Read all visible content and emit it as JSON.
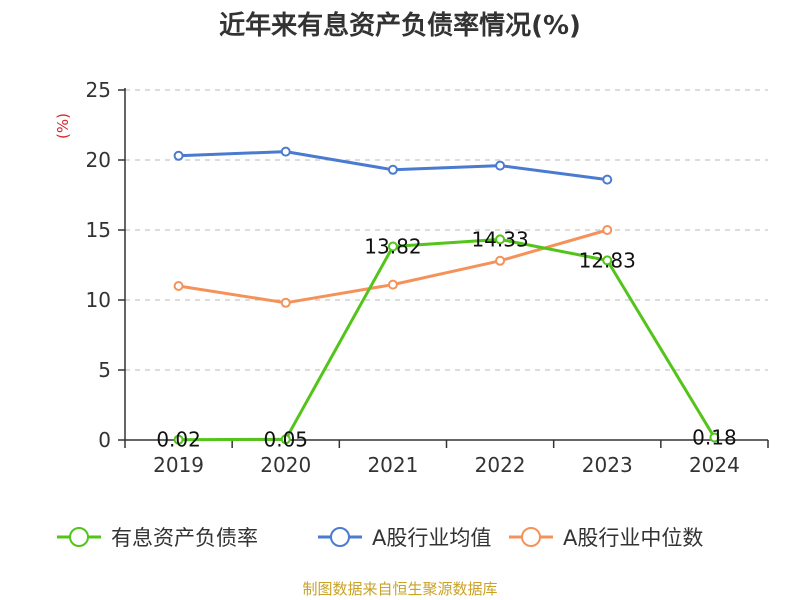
{
  "chart_data": {
    "type": "line",
    "title": "近年来有息资产负债率情况(%)",
    "unit_label": "(%)",
    "unit_color": "#d9272e",
    "categories": [
      "2019",
      "2020",
      "2021",
      "2022",
      "2023",
      "2024"
    ],
    "yticks": [
      "0",
      "5",
      "10",
      "15",
      "20",
      "25"
    ],
    "ylim": [
      0,
      25
    ],
    "grid": true,
    "legend_position": "bottom",
    "series": [
      {
        "name": "有息资产负债率",
        "color": "#52c41a",
        "values": [
          0.02,
          0.05,
          13.82,
          14.33,
          12.83,
          0.18
        ],
        "labels": [
          "0.02",
          "0.05",
          "13.82",
          "14.33",
          "12.83",
          "0.18"
        ]
      },
      {
        "name": "A股行业均值",
        "color": "#4a7bd0",
        "values": [
          20.3,
          20.6,
          19.3,
          19.6,
          18.6,
          null
        ]
      },
      {
        "name": "A股行业中位数",
        "color": "#f5925a",
        "values": [
          11.0,
          9.8,
          11.1,
          12.8,
          15.0,
          null
        ]
      }
    ],
    "source": "制图数据来自恒生聚源数据库",
    "source_color": "#c9a227"
  }
}
